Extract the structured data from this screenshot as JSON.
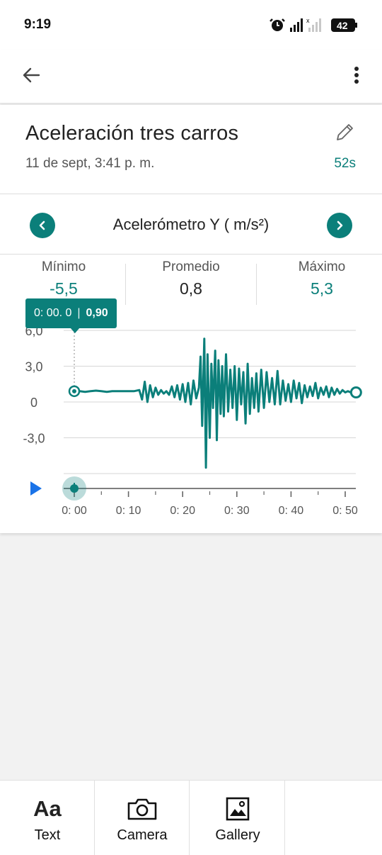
{
  "status": {
    "time": "9:19",
    "battery": "42"
  },
  "recording": {
    "title": "Aceleración tres carros",
    "date": "11 de sept, 3:41 p. m.",
    "duration": "52s"
  },
  "sensor": {
    "label": "Acelerómetro Y ( m/s²)"
  },
  "stats": {
    "min_label": "Mínimo",
    "min_value": "-5,5",
    "avg_label": "Promedio",
    "avg_value": "0,8",
    "max_label": "Máximo",
    "max_value": "5,3"
  },
  "tooltip": {
    "time": "0: 00. 0",
    "value": "0,90"
  },
  "chart_data": {
    "type": "line",
    "xlabel": "",
    "ylabel": "",
    "ylim": [
      -5.5,
      6.0
    ],
    "xlim": [
      0,
      52
    ],
    "y_ticks": [
      "6,0",
      "3,0",
      "0",
      "-3,0"
    ],
    "x_ticks": [
      "0: 00",
      "0: 10",
      "0: 20",
      "0: 30",
      "0: 40",
      "0: 50"
    ],
    "series": [
      {
        "x": [
          0,
          1,
          2,
          3,
          4,
          5,
          6,
          7,
          8,
          9,
          10,
          11,
          12,
          12.5,
          13,
          13.5,
          14,
          14.5,
          15,
          15.5,
          16,
          16.5,
          17,
          17.5,
          18,
          18.5,
          19,
          19.5,
          20,
          20.5,
          21,
          21.5,
          22,
          22.5,
          23,
          23.3,
          23.6,
          24,
          24.3,
          24.6,
          25,
          25.3,
          25.6,
          26,
          26.3,
          26.6,
          27,
          27.3,
          27.6,
          28,
          28.4,
          28.8,
          29.2,
          29.6,
          30,
          30.4,
          30.8,
          31.2,
          31.6,
          32,
          32.4,
          32.8,
          33.2,
          33.6,
          34,
          34.5,
          35,
          35.5,
          36,
          36.5,
          37,
          37.5,
          38,
          38.5,
          39,
          39.5,
          40,
          40.5,
          41,
          41.5,
          42,
          42.5,
          43,
          43.5,
          44,
          44.5,
          45,
          45.5,
          46,
          46.5,
          47,
          47.5,
          48,
          48.5,
          49,
          49.5,
          50,
          50.5,
          51,
          51.5,
          52
        ],
        "values": [
          0.9,
          0.9,
          0.85,
          0.9,
          0.95,
          0.9,
          0.85,
          0.9,
          0.9,
          0.9,
          0.9,
          0.9,
          1.0,
          0.2,
          1.7,
          0.0,
          1.4,
          0.4,
          1.2,
          0.6,
          1.0,
          0.7,
          0.9,
          0.6,
          1.3,
          0.4,
          1.4,
          0.2,
          1.5,
          0.0,
          1.6,
          -0.2,
          1.8,
          0.3,
          1.2,
          3.8,
          -2.0,
          5.3,
          -5.5,
          4.0,
          -3.0,
          3.2,
          -0.5,
          4.3,
          -3.2,
          3.5,
          -1.0,
          3.0,
          -1.2,
          4.0,
          -0.8,
          2.7,
          -0.5,
          3.0,
          -1.5,
          2.8,
          -0.2,
          2.5,
          -1.8,
          3.2,
          -1.0,
          2.0,
          -0.5,
          2.4,
          -0.8,
          2.7,
          -0.5,
          2.5,
          0.0,
          2.0,
          -0.2,
          2.6,
          -0.2,
          1.8,
          0.1,
          1.5,
          0.0,
          1.8,
          0.3,
          1.6,
          -0.1,
          1.4,
          0.4,
          1.3,
          0.5,
          1.6,
          0.3,
          1.2,
          0.6,
          1.3,
          0.4,
          1.2,
          0.6,
          1.1,
          0.7,
          1.0,
          0.8,
          0.9,
          0.8,
          0.8,
          0.8
        ]
      }
    ],
    "grid": true
  },
  "tools": [
    {
      "label": "Text",
      "icon": "text-aa-icon"
    },
    {
      "label": "Camera",
      "icon": "camera-icon"
    },
    {
      "label": "Gallery",
      "icon": "gallery-icon"
    }
  ],
  "colors": {
    "accent": "#0b7f7a",
    "play": "#1a73e8"
  }
}
